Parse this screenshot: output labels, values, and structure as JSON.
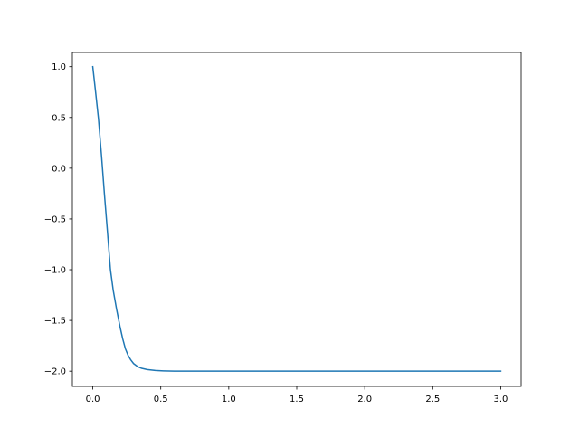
{
  "chart_data": {
    "type": "line",
    "title": "",
    "xlabel": "",
    "ylabel": "",
    "xlim": [
      -0.15,
      3.15
    ],
    "ylim": [
      -2.15,
      1.14
    ],
    "grid": false,
    "xticks": [
      0.0,
      0.5,
      1.0,
      1.5,
      2.0,
      2.5,
      3.0
    ],
    "xtick_labels": [
      "0.0",
      "0.5",
      "1.0",
      "1.5",
      "2.0",
      "2.5",
      "3.0"
    ],
    "yticks": [
      1.0,
      0.5,
      0.0,
      -0.5,
      -1.0,
      -1.5,
      -2.0
    ],
    "ytick_labels": [
      "1.0",
      "0.5",
      "0.0",
      "−0.5",
      "−1.0",
      "−1.5",
      "−2.0"
    ],
    "series": [
      {
        "color": "#1f77b4",
        "x": [
          0,
          0.02,
          0.042,
          0.065,
          0.086,
          0.11,
          0.13,
          0.15,
          0.175,
          0.2,
          0.22,
          0.24,
          0.26,
          0.28,
          0.3,
          0.33,
          0.36,
          0.4,
          0.46,
          0.52,
          0.6,
          1.0,
          1.5,
          2.0,
          2.5,
          3.0
        ],
        "y": [
          1.0,
          0.76,
          0.485,
          0.11,
          -0.26,
          -0.66,
          -1.0,
          -1.2,
          -1.39,
          -1.56,
          -1.68,
          -1.78,
          -1.845,
          -1.89,
          -1.925,
          -1.955,
          -1.972,
          -1.984,
          -1.993,
          -1.997,
          -2.0,
          -2.0,
          -2.0,
          -2.0,
          -2.0,
          -2.0
        ]
      }
    ]
  }
}
